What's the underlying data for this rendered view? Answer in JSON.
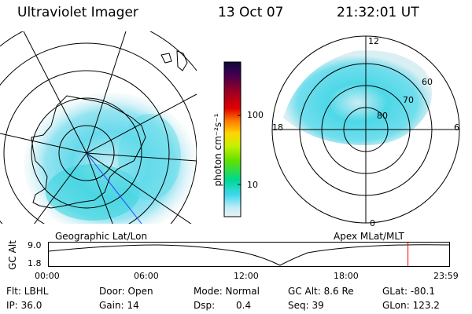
{
  "header": {
    "title": "Ultraviolet Imager",
    "date": "13 Oct 07",
    "time": "21:32:01 UT"
  },
  "left_panel": {
    "caption": "Geographic Lat/Lon"
  },
  "right_panel": {
    "caption": "Apex MLat/MLT",
    "mlt_labels": [
      "12",
      "18",
      "6",
      "0"
    ],
    "mlat_labels": [
      "60",
      "70",
      "80"
    ]
  },
  "colorbar": {
    "unit_label": "photon cm⁻²s⁻¹",
    "tick_labels": [
      "100",
      "10"
    ],
    "scale": "log",
    "colors": [
      "#0b0b3a",
      "#400050",
      "#a00020",
      "#e00000",
      "#ff7a00",
      "#ffd400",
      "#c8f000",
      "#60e000",
      "#00d890",
      "#40d8f0",
      "#c0ecf6",
      "#e8f2f4"
    ]
  },
  "altitude_plot": {
    "ylabel": "GC Alt",
    "y_ticks": [
      "9.0",
      "1.8"
    ],
    "x_ticks": [
      "00:00",
      "06:00",
      "12:00",
      "18:00",
      "23:59"
    ],
    "cursor_time_hours": 21.53,
    "cursor_color": "#ff0000"
  },
  "footer": {
    "row1": {
      "flt": "Flt: LBHL",
      "door": "Door: Open",
      "mode": "Mode: Normal",
      "gcalt": "GC Alt: 8.6 Re",
      "glat": "GLat: -80.1"
    },
    "row2": {
      "ip": "IP: 36.0",
      "gain": "Gain: 14",
      "dsp_label": "Dsp:",
      "dsp_value": "0.4",
      "seq": "Seq: 39",
      "glon": "GLon: 123.2"
    }
  }
}
